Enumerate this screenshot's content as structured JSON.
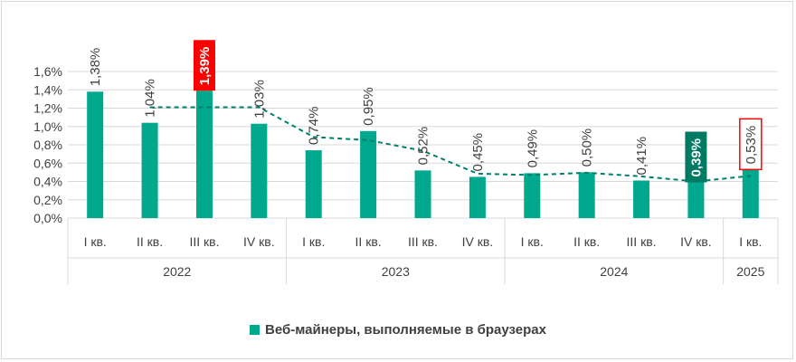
{
  "chart_data": {
    "type": "bar",
    "title": "",
    "xlabel": "",
    "ylabel": "",
    "ylim": [
      0,
      1.6
    ],
    "ytick_step": 0.2,
    "ytick_labels": [
      "0,0%",
      "0,2%",
      "0,4%",
      "0,6%",
      "0,8%",
      "1,0%",
      "1,2%",
      "1,4%",
      "1,6%"
    ],
    "grid": "horizontal",
    "legend_position": "bottom",
    "categories": [
      "I кв.",
      "II кв.",
      "III кв.",
      "IV кв.",
      "I кв.",
      "II кв.",
      "III кв.",
      "IV кв.",
      "I кв.",
      "II кв.",
      "III кв.",
      "IV кв.",
      "I кв."
    ],
    "groups": [
      {
        "label": "2022",
        "count": 4
      },
      {
        "label": "2023",
        "count": 4
      },
      {
        "label": "2024",
        "count": 4
      },
      {
        "label": "2025",
        "count": 1
      }
    ],
    "series": [
      {
        "name": "Веб-майнеры, выполняемые в браузерах",
        "values": [
          1.38,
          1.04,
          1.39,
          1.03,
          0.74,
          0.95,
          0.52,
          0.45,
          0.49,
          0.5,
          0.41,
          0.39,
          0.53
        ],
        "data_labels": [
          "1,38%",
          "1,04%",
          "1,39%",
          "1,03%",
          "0,74%",
          "0,95%",
          "0,52%",
          "0,45%",
          "0,49%",
          "0,50%",
          "0,41%",
          "0,39%",
          "0,53%"
        ]
      }
    ],
    "trendline": {
      "style": "dashed",
      "values": [
        null,
        1.21,
        1.21,
        1.21,
        0.885,
        0.85,
        0.735,
        0.485,
        0.47,
        0.495,
        0.455,
        0.4,
        0.46
      ]
    },
    "highlights": [
      {
        "index": 2,
        "style": "filled",
        "color": "#ff0000"
      },
      {
        "index": 11,
        "style": "filled",
        "color": "#007a62"
      },
      {
        "index": 12,
        "style": "outline",
        "color": "#ff0000"
      }
    ],
    "colors": {
      "bar": "#00a88e",
      "trendline": "#00806b",
      "grid": "#d9d9d9",
      "text": "#404040"
    }
  }
}
